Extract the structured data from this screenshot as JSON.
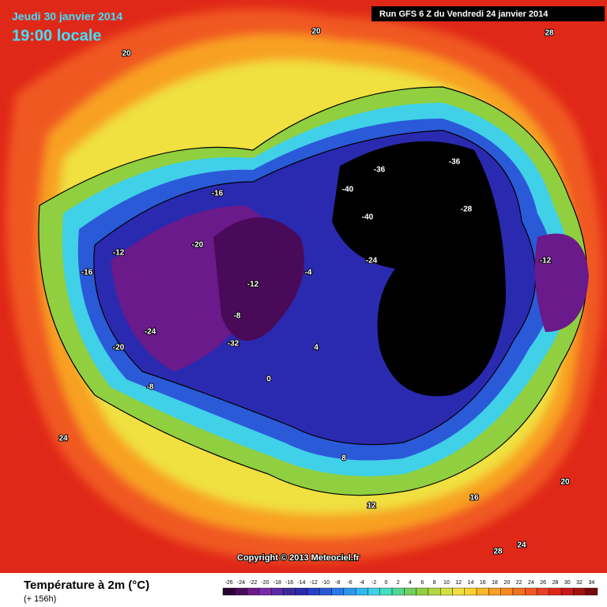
{
  "header": {
    "date": "Jeudi 30 janvier 2014",
    "time": "19:00 locale",
    "run": "Run GFS 6 Z du Vendredi 24 janvier 2014",
    "copyright": "Copyright © 2013 Meteociel.fr"
  },
  "footer": {
    "title": "Température à 2m (°C)",
    "lead": "(+ 156h)"
  },
  "legend": {
    "values": [
      -26,
      -24,
      -22,
      -20,
      -18,
      -16,
      -14,
      -12,
      -10,
      -8,
      -6,
      -4,
      -2,
      0,
      2,
      4,
      6,
      8,
      10,
      12,
      14,
      16,
      18,
      20,
      22,
      24,
      26,
      28,
      30,
      32,
      34
    ],
    "colors": [
      "#2a0030",
      "#4a0a5a",
      "#6a1a8a",
      "#7a2aa8",
      "#5a2aa8",
      "#3a2a9a",
      "#2a2ab0",
      "#2a40c8",
      "#2a5ad8",
      "#2a78e8",
      "#2a98f0",
      "#30b8f0",
      "#40d0e8",
      "#40e0c0",
      "#50d890",
      "#70d060",
      "#90d040",
      "#b0d840",
      "#d0e040",
      "#f0e040",
      "#f8d030",
      "#f8b828",
      "#f8a020",
      "#f88820",
      "#f07020",
      "#f05820",
      "#e84020",
      "#e02818",
      "#c81818",
      "#a01010",
      "#780808"
    ]
  },
  "map_labels": [
    "20",
    "20",
    "24",
    "28",
    "-16",
    "-20",
    "-24",
    "-12",
    "-8",
    "-32",
    "-36",
    "-40",
    "-28",
    "-24",
    "-20",
    "-16",
    "-12",
    "-8",
    "-4",
    "0",
    "4",
    "8",
    "12",
    "16",
    "20",
    "24",
    "28",
    "-40",
    "-36",
    "-12"
  ]
}
